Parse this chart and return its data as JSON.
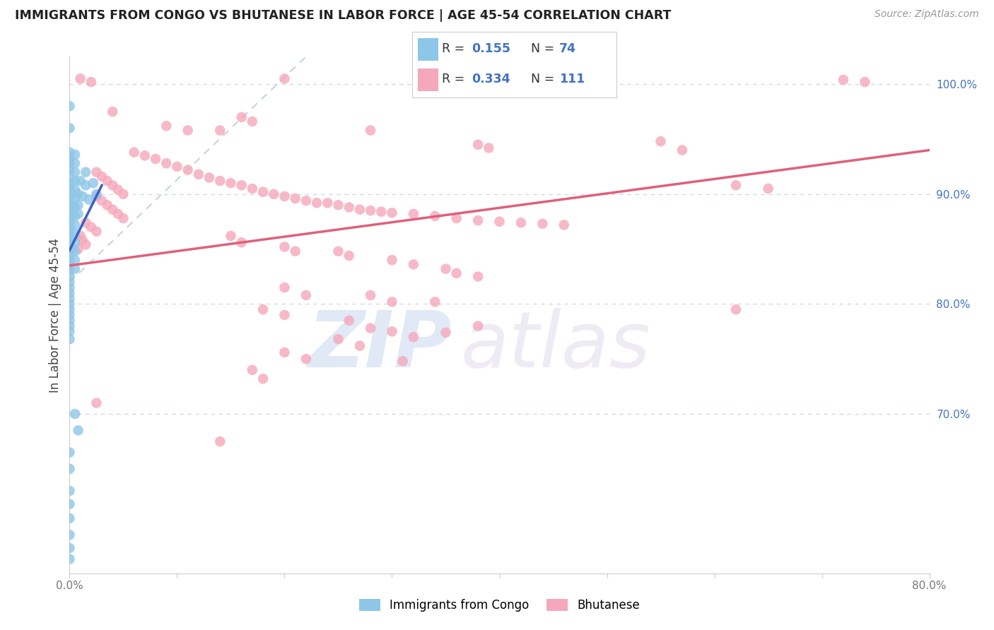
{
  "title": "IMMIGRANTS FROM CONGO VS BHUTANESE IN LABOR FORCE | AGE 45-54 CORRELATION CHART",
  "source": "Source: ZipAtlas.com",
  "ylabel": "In Labor Force | Age 45-54",
  "xlim": [
    0.0,
    0.8
  ],
  "ylim": [
    0.555,
    1.025
  ],
  "congo_color": "#8ec6e8",
  "bhutan_color": "#f5a8bb",
  "congo_line_color": "#3a5fc8",
  "bhutan_line_color": "#e0607a",
  "diagonal_color": "#b8c8d8",
  "background_color": "#ffffff",
  "grid_color": "#d0d8e8",
  "right_tick_color": "#4472c4",
  "congo_R": 0.155,
  "congo_N": 74,
  "bhutan_R": 0.334,
  "bhutan_N": 111,
  "congo_line": [
    0.0,
    0.849,
    0.03,
    0.908
  ],
  "bhutan_line": [
    0.0,
    0.835,
    0.8,
    0.94
  ],
  "diagonal_line": [
    0.0,
    0.82,
    0.22,
    1.025
  ],
  "congo_scatter": [
    [
      0.0,
      0.98
    ],
    [
      0.0,
      0.96
    ],
    [
      0.0,
      0.938
    ],
    [
      0.0,
      0.932
    ],
    [
      0.0,
      0.928
    ],
    [
      0.0,
      0.922
    ],
    [
      0.0,
      0.916
    ],
    [
      0.0,
      0.91
    ],
    [
      0.0,
      0.905
    ],
    [
      0.0,
      0.9
    ],
    [
      0.0,
      0.895
    ],
    [
      0.0,
      0.89
    ],
    [
      0.0,
      0.885
    ],
    [
      0.0,
      0.88
    ],
    [
      0.0,
      0.875
    ],
    [
      0.0,
      0.87
    ],
    [
      0.0,
      0.865
    ],
    [
      0.0,
      0.86
    ],
    [
      0.0,
      0.855
    ],
    [
      0.0,
      0.85
    ],
    [
      0.0,
      0.845
    ],
    [
      0.0,
      0.84
    ],
    [
      0.0,
      0.835
    ],
    [
      0.0,
      0.83
    ],
    [
      0.0,
      0.825
    ],
    [
      0.0,
      0.82
    ],
    [
      0.0,
      0.815
    ],
    [
      0.0,
      0.81
    ],
    [
      0.0,
      0.805
    ],
    [
      0.0,
      0.8
    ],
    [
      0.0,
      0.795
    ],
    [
      0.0,
      0.79
    ],
    [
      0.0,
      0.785
    ],
    [
      0.0,
      0.78
    ],
    [
      0.0,
      0.775
    ],
    [
      0.0,
      0.768
    ],
    [
      0.005,
      0.936
    ],
    [
      0.005,
      0.928
    ],
    [
      0.005,
      0.92
    ],
    [
      0.005,
      0.912
    ],
    [
      0.005,
      0.904
    ],
    [
      0.005,
      0.896
    ],
    [
      0.005,
      0.888
    ],
    [
      0.005,
      0.88
    ],
    [
      0.005,
      0.872
    ],
    [
      0.005,
      0.864
    ],
    [
      0.005,
      0.856
    ],
    [
      0.005,
      0.848
    ],
    [
      0.005,
      0.84
    ],
    [
      0.005,
      0.832
    ],
    [
      0.008,
      0.9
    ],
    [
      0.008,
      0.89
    ],
    [
      0.008,
      0.882
    ],
    [
      0.01,
      0.912
    ],
    [
      0.012,
      0.898
    ],
    [
      0.015,
      0.92
    ],
    [
      0.015,
      0.908
    ],
    [
      0.018,
      0.895
    ],
    [
      0.022,
      0.91
    ],
    [
      0.025,
      0.9
    ],
    [
      0.005,
      0.7
    ],
    [
      0.008,
      0.685
    ],
    [
      0.0,
      0.665
    ],
    [
      0.0,
      0.65
    ],
    [
      0.0,
      0.63
    ],
    [
      0.0,
      0.618
    ],
    [
      0.0,
      0.605
    ],
    [
      0.0,
      0.59
    ],
    [
      0.0,
      0.578
    ],
    [
      0.0,
      0.568
    ]
  ],
  "bhutan_scatter": [
    [
      0.01,
      1.005
    ],
    [
      0.02,
      1.002
    ],
    [
      0.2,
      1.005
    ],
    [
      0.72,
      1.004
    ],
    [
      0.74,
      1.002
    ],
    [
      0.04,
      0.975
    ],
    [
      0.09,
      0.962
    ],
    [
      0.11,
      0.958
    ],
    [
      0.14,
      0.958
    ],
    [
      0.16,
      0.97
    ],
    [
      0.17,
      0.966
    ],
    [
      0.28,
      0.958
    ],
    [
      0.38,
      0.945
    ],
    [
      0.39,
      0.942
    ],
    [
      0.55,
      0.948
    ],
    [
      0.57,
      0.94
    ],
    [
      0.62,
      0.908
    ],
    [
      0.65,
      0.905
    ],
    [
      0.06,
      0.938
    ],
    [
      0.07,
      0.935
    ],
    [
      0.08,
      0.932
    ],
    [
      0.09,
      0.928
    ],
    [
      0.1,
      0.925
    ],
    [
      0.11,
      0.922
    ],
    [
      0.12,
      0.918
    ],
    [
      0.13,
      0.915
    ],
    [
      0.14,
      0.912
    ],
    [
      0.15,
      0.91
    ],
    [
      0.16,
      0.908
    ],
    [
      0.17,
      0.905
    ],
    [
      0.18,
      0.902
    ],
    [
      0.19,
      0.9
    ],
    [
      0.2,
      0.898
    ],
    [
      0.21,
      0.896
    ],
    [
      0.22,
      0.894
    ],
    [
      0.23,
      0.892
    ],
    [
      0.24,
      0.892
    ],
    [
      0.25,
      0.89
    ],
    [
      0.26,
      0.888
    ],
    [
      0.27,
      0.886
    ],
    [
      0.28,
      0.885
    ],
    [
      0.29,
      0.884
    ],
    [
      0.3,
      0.883
    ],
    [
      0.32,
      0.882
    ],
    [
      0.34,
      0.88
    ],
    [
      0.36,
      0.878
    ],
    [
      0.38,
      0.876
    ],
    [
      0.4,
      0.875
    ],
    [
      0.42,
      0.874
    ],
    [
      0.44,
      0.873
    ],
    [
      0.46,
      0.872
    ],
    [
      0.025,
      0.92
    ],
    [
      0.03,
      0.916
    ],
    [
      0.035,
      0.912
    ],
    [
      0.04,
      0.908
    ],
    [
      0.045,
      0.904
    ],
    [
      0.05,
      0.9
    ],
    [
      0.025,
      0.898
    ],
    [
      0.03,
      0.894
    ],
    [
      0.035,
      0.89
    ],
    [
      0.04,
      0.886
    ],
    [
      0.045,
      0.882
    ],
    [
      0.05,
      0.878
    ],
    [
      0.015,
      0.874
    ],
    [
      0.02,
      0.87
    ],
    [
      0.025,
      0.866
    ],
    [
      0.01,
      0.862
    ],
    [
      0.012,
      0.858
    ],
    [
      0.015,
      0.854
    ],
    [
      0.008,
      0.85
    ],
    [
      0.15,
      0.862
    ],
    [
      0.16,
      0.856
    ],
    [
      0.2,
      0.852
    ],
    [
      0.21,
      0.848
    ],
    [
      0.25,
      0.848
    ],
    [
      0.26,
      0.844
    ],
    [
      0.3,
      0.84
    ],
    [
      0.32,
      0.836
    ],
    [
      0.35,
      0.832
    ],
    [
      0.36,
      0.828
    ],
    [
      0.38,
      0.825
    ],
    [
      0.2,
      0.815
    ],
    [
      0.22,
      0.808
    ],
    [
      0.28,
      0.808
    ],
    [
      0.3,
      0.802
    ],
    [
      0.34,
      0.802
    ],
    [
      0.18,
      0.795
    ],
    [
      0.2,
      0.79
    ],
    [
      0.26,
      0.785
    ],
    [
      0.28,
      0.778
    ],
    [
      0.3,
      0.775
    ],
    [
      0.32,
      0.77
    ],
    [
      0.35,
      0.774
    ],
    [
      0.38,
      0.78
    ],
    [
      0.25,
      0.768
    ],
    [
      0.27,
      0.762
    ],
    [
      0.2,
      0.756
    ],
    [
      0.22,
      0.75
    ],
    [
      0.31,
      0.748
    ],
    [
      0.17,
      0.74
    ],
    [
      0.18,
      0.732
    ],
    [
      0.62,
      0.795
    ],
    [
      0.025,
      0.71
    ],
    [
      0.14,
      0.675
    ]
  ]
}
